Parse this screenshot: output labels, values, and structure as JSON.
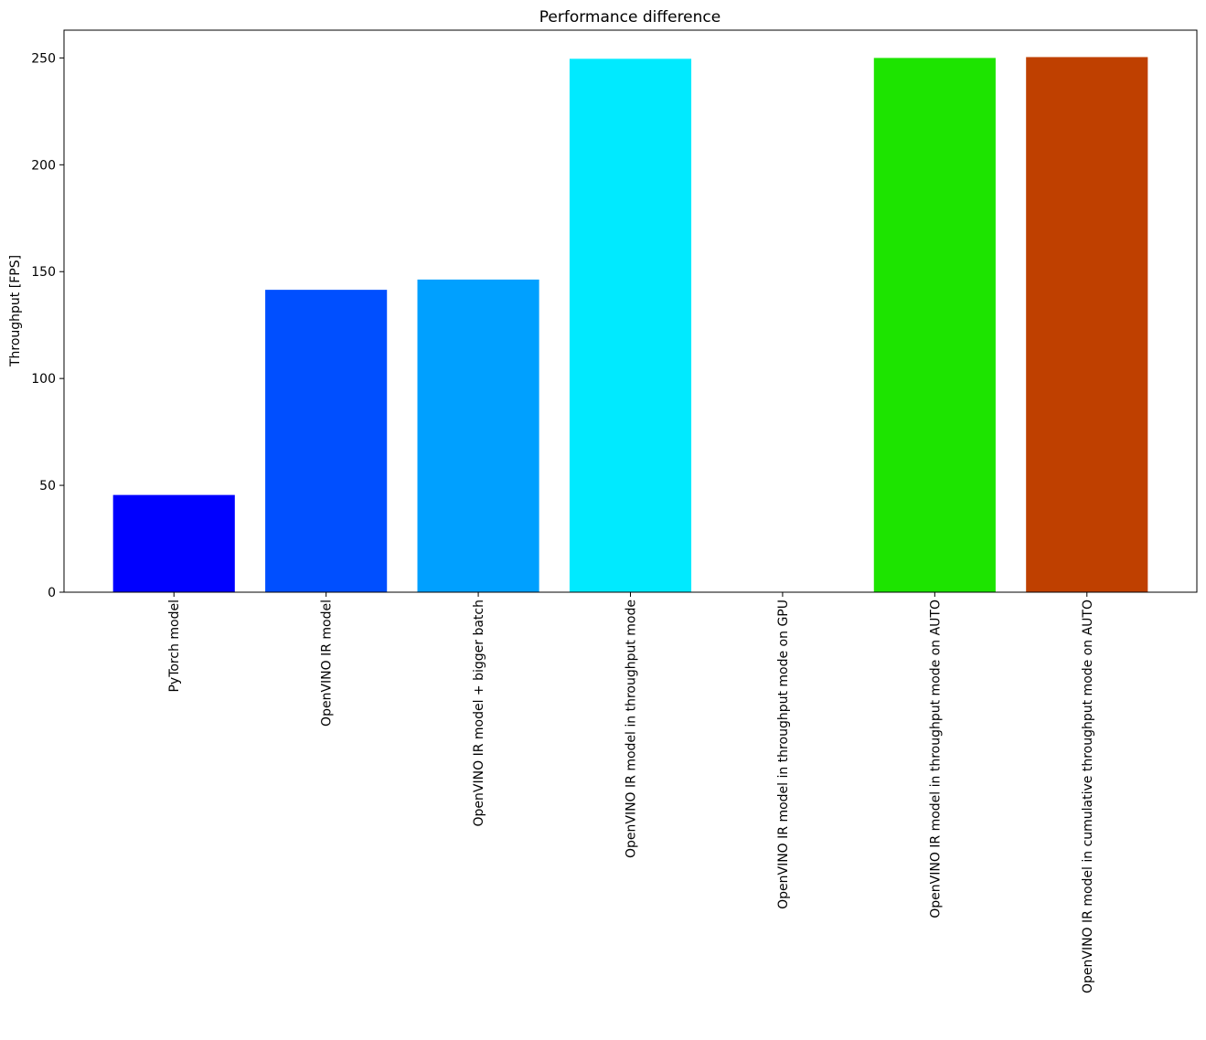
{
  "chart_data": {
    "type": "bar",
    "title": "Performance difference",
    "xlabel": "",
    "ylabel": "Throughput [FPS]",
    "ylim": [
      0,
      263
    ],
    "yticks": [
      0,
      50,
      100,
      150,
      200,
      250
    ],
    "grid": false,
    "categories": [
      "PyTorch model",
      "OpenVINO IR model",
      "OpenVINO IR model + bigger batch",
      "OpenVINO IR model in throughput mode",
      "OpenVINO IR model in throughput mode on GPU",
      "OpenVINO IR model in throughput mode on AUTO",
      "OpenVINO IR model in cumulative throughput mode on AUTO"
    ],
    "values": [
      45.5,
      141.5,
      146.3,
      249.6,
      0,
      250.0,
      250.4
    ],
    "colors": [
      "#0000ff",
      "#004fff",
      "#00a0ff",
      "#00eaff",
      "#ffffff",
      "#1de400",
      "#bf4000"
    ]
  }
}
